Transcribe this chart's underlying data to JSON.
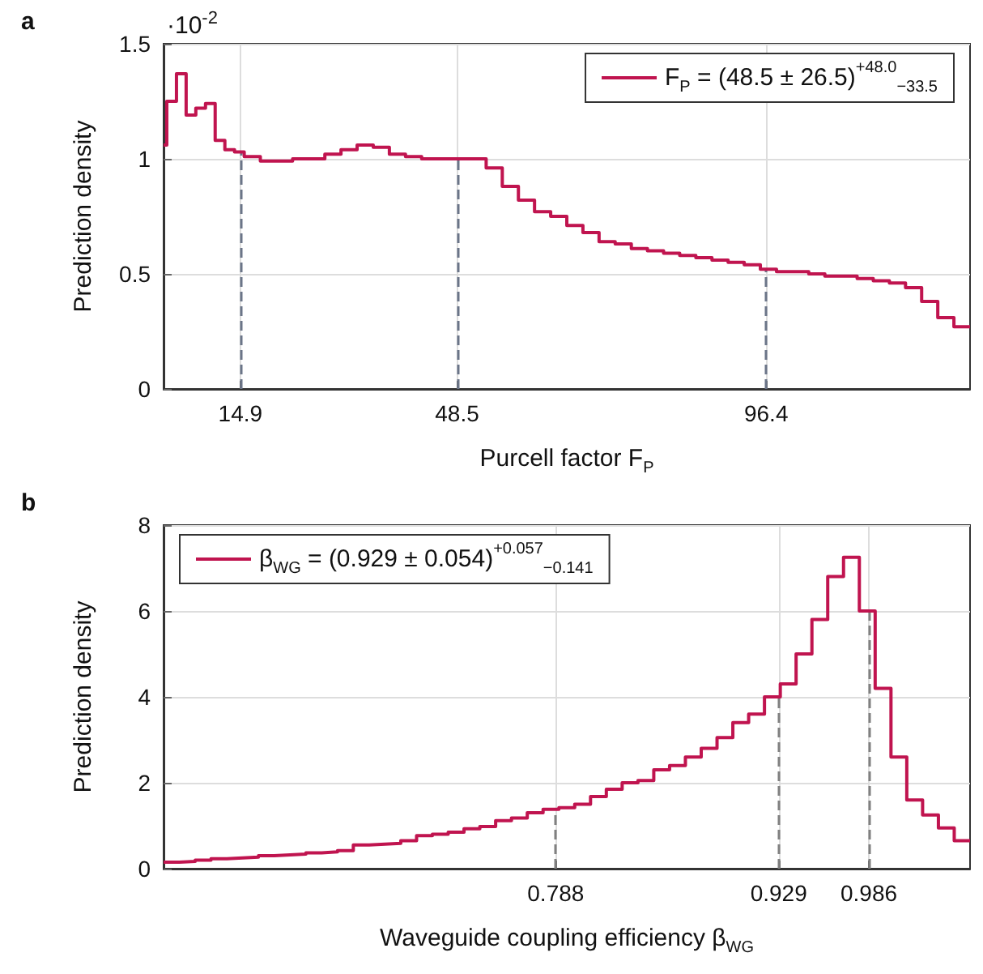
{
  "chart_data": [
    {
      "type": "histogram",
      "title": "a",
      "xlabel": "Purcell factor F$_{P}$",
      "ylabel": "Prediction density",
      "annotations": [
        "·10$^{-2}$"
      ],
      "bins": [
        3,
        3.5,
        5,
        6.5,
        8,
        9.5,
        11,
        12.5,
        14,
        15.5,
        18,
        20.5,
        23,
        25.5,
        28,
        30.5,
        33,
        35.5,
        38,
        40.5,
        43,
        45.5,
        48,
        50.5,
        53,
        55.5,
        58,
        60.5,
        63,
        65.5,
        68,
        70.5,
        73,
        75.5,
        78,
        80.5,
        83,
        85.5,
        88,
        90.5,
        93,
        95.5,
        98,
        100.5,
        103,
        105.5,
        108,
        110.5,
        113,
        115.5,
        118,
        120.5,
        123,
        125.5,
        128
      ],
      "series": [
        {
          "name": "F$_{P}$ = (48.5 ± 26.5)$^{+48.0}$$_{−33.5}$",
          "color": "#c0144f",
          "values": [
            1.06,
            1.25,
            1.37,
            1.19,
            1.22,
            1.24,
            1.08,
            1.04,
            1.03,
            1.01,
            0.99,
            0.99,
            1.0,
            1.0,
            1.02,
            1.04,
            1.06,
            1.05,
            1.02,
            1.01,
            1.0,
            1.0,
            1.0,
            1.0,
            0.96,
            0.88,
            0.82,
            0.77,
            0.75,
            0.71,
            0.68,
            0.64,
            0.63,
            0.61,
            0.6,
            0.59,
            0.58,
            0.57,
            0.56,
            0.55,
            0.54,
            0.52,
            0.51,
            0.51,
            0.5,
            0.49,
            0.49,
            0.48,
            0.47,
            0.46,
            0.44,
            0.38,
            0.31,
            0.27
          ]
        }
      ],
      "xlim": [
        3,
        128
      ],
      "xticks": [
        14.9,
        48.5,
        96.4
      ],
      "ylim": [
        0,
        1.5
      ],
      "yticks": [
        0,
        0.5,
        1,
        1.5
      ],
      "ref_lines": [
        {
          "axis": "x",
          "value": 14.9,
          "color": "#6b7588",
          "line_style": "dashed"
        },
        {
          "axis": "x",
          "value": 48.5,
          "color": "#6b7588",
          "line_style": "dashed"
        },
        {
          "axis": "x",
          "value": 96.4,
          "color": "#6b7588",
          "line_style": "dashed"
        }
      ],
      "grid": true,
      "legend": "top right"
    },
    {
      "type": "histogram",
      "title": "b",
      "xlabel": "Waveguide coupling efficiency β$_{WG}$",
      "ylabel": "Prediction density",
      "bins": [
        0.54,
        0.55,
        0.56,
        0.57,
        0.58,
        0.59,
        0.6,
        0.61,
        0.62,
        0.63,
        0.64,
        0.65,
        0.66,
        0.67,
        0.68,
        0.69,
        0.7,
        0.71,
        0.72,
        0.73,
        0.74,
        0.75,
        0.76,
        0.77,
        0.78,
        0.79,
        0.8,
        0.81,
        0.82,
        0.83,
        0.84,
        0.85,
        0.86,
        0.87,
        0.88,
        0.89,
        0.9,
        0.91,
        0.92,
        0.93,
        0.94,
        0.95,
        0.96,
        0.97,
        0.98,
        0.99,
        1.0,
        1.01,
        1.02,
        1.03,
        1.04,
        1.05
      ],
      "series": [
        {
          "name": "β$_{WG}$ = (0.929 ± 0.054)$^{+0.057}$$_{−0.141}$",
          "color": "#c0144f",
          "values": [
            0.15,
            0.17,
            0.2,
            0.23,
            0.25,
            0.27,
            0.3,
            0.32,
            0.34,
            0.37,
            0.39,
            0.42,
            0.55,
            0.57,
            0.59,
            0.65,
            0.77,
            0.8,
            0.85,
            0.93,
            0.98,
            1.12,
            1.18,
            1.3,
            1.38,
            1.42,
            1.5,
            1.68,
            1.85,
            2.0,
            2.05,
            2.3,
            2.4,
            2.6,
            2.8,
            3.05,
            3.4,
            3.6,
            4.0,
            4.3,
            5.0,
            5.8,
            6.8,
            7.25,
            6.0,
            4.2,
            2.6,
            1.6,
            1.25,
            0.95,
            0.65
          ]
        }
      ],
      "xlim": [
        0.54,
        1.05
      ],
      "xticks": [
        0.788,
        0.929,
        0.986
      ],
      "ylim": [
        0,
        8
      ],
      "yticks": [
        0,
        2,
        4,
        6,
        8
      ],
      "ref_lines": [
        {
          "axis": "x",
          "value": 0.788,
          "color": "#808080",
          "line_style": "dashed"
        },
        {
          "axis": "x",
          "value": 0.929,
          "color": "#808080",
          "line_style": "dashed"
        },
        {
          "axis": "x",
          "value": 0.986,
          "color": "#808080",
          "line_style": "dashed"
        }
      ],
      "grid": true,
      "legend": "top left"
    }
  ]
}
